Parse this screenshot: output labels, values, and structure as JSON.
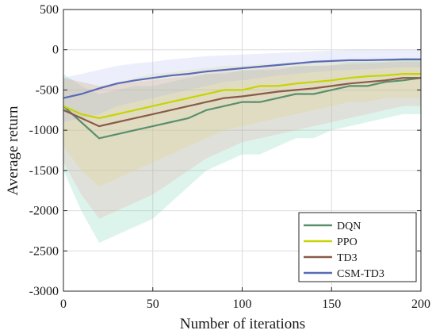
{
  "chart_data": {
    "type": "line",
    "title": "",
    "xlabel": "Number of iterations",
    "ylabel": "Average return",
    "xlim": [
      0,
      200
    ],
    "ylim": [
      -3000,
      500
    ],
    "x_ticks": [
      0,
      50,
      100,
      150,
      200
    ],
    "y_ticks": [
      -3000,
      -2500,
      -2000,
      -1500,
      -1000,
      -500,
      0,
      500
    ],
    "grid": true,
    "legend_position": "bottom-right",
    "x": [
      0,
      10,
      20,
      30,
      40,
      50,
      60,
      70,
      80,
      90,
      100,
      110,
      120,
      130,
      140,
      150,
      160,
      170,
      180,
      190,
      200
    ],
    "series": [
      {
        "name": "DQN",
        "color": "#5a8f6e",
        "band_color": "#66ccaa",
        "values": [
          -700,
          -900,
          -1100,
          -1050,
          -1000,
          -950,
          -900,
          -850,
          -750,
          -700,
          -650,
          -650,
          -600,
          -550,
          -550,
          -500,
          -450,
          -450,
          -400,
          -380,
          -350
        ],
        "band_low": [
          -1500,
          -2000,
          -2400,
          -2300,
          -2200,
          -2100,
          -1900,
          -1700,
          -1500,
          -1400,
          -1300,
          -1300,
          -1200,
          -1100,
          -1100,
          -1000,
          -950,
          -900,
          -850,
          -800,
          -800
        ],
        "band_high": [
          -300,
          -450,
          -550,
          -500,
          -450,
          -450,
          -400,
          -350,
          -300,
          -300,
          -250,
          -250,
          -250,
          -200,
          -200,
          -200,
          -150,
          -150,
          -150,
          -100,
          -100
        ]
      },
      {
        "name": "PPO",
        "color": "#c8d400",
        "band_color": "#e0e066",
        "values": [
          -700,
          -800,
          -850,
          -800,
          -750,
          -700,
          -650,
          -600,
          -550,
          -500,
          -500,
          -450,
          -450,
          -420,
          -400,
          -380,
          -350,
          -330,
          -320,
          -300,
          -300
        ],
        "band_low": [
          -1200,
          -1500,
          -1700,
          -1600,
          -1500,
          -1400,
          -1300,
          -1200,
          -1100,
          -1000,
          -950,
          -900,
          -850,
          -800,
          -750,
          -700,
          -650,
          -650,
          -600,
          -600,
          -600
        ],
        "band_high": [
          -350,
          -400,
          -450,
          -400,
          -350,
          -300,
          -280,
          -250,
          -230,
          -200,
          -200,
          -180,
          -170,
          -150,
          -150,
          -140,
          -130,
          -120,
          -110,
          -100,
          -100
        ]
      },
      {
        "name": "TD3",
        "color": "#8b5a4a",
        "band_color": "#ee9999",
        "values": [
          -750,
          -850,
          -950,
          -900,
          -850,
          -800,
          -750,
          -700,
          -650,
          -600,
          -580,
          -550,
          -520,
          -500,
          -480,
          -450,
          -420,
          -400,
          -380,
          -350,
          -350
        ],
        "band_low": [
          -1400,
          -1800,
          -2100,
          -2000,
          -1900,
          -1800,
          -1650,
          -1500,
          -1350,
          -1250,
          -1150,
          -1100,
          -1050,
          -1000,
          -950,
          -900,
          -850,
          -800,
          -750,
          -700,
          -700
        ],
        "band_high": [
          -350,
          -400,
          -450,
          -430,
          -400,
          -380,
          -350,
          -330,
          -300,
          -280,
          -260,
          -240,
          -220,
          -210,
          -200,
          -190,
          -180,
          -170,
          -160,
          -150,
          -150
        ]
      },
      {
        "name": "CSM-TD3",
        "color": "#5a6ab8",
        "band_color": "#aab4ee",
        "values": [
          -600,
          -550,
          -480,
          -420,
          -380,
          -350,
          -320,
          -300,
          -270,
          -250,
          -230,
          -210,
          -190,
          -170,
          -150,
          -140,
          -130,
          -130,
          -125,
          -120,
          -120
        ],
        "band_low": [
          -900,
          -850,
          -800,
          -700,
          -650,
          -600,
          -550,
          -500,
          -450,
          -400,
          -380,
          -350,
          -320,
          -300,
          -280,
          -260,
          -250,
          -240,
          -230,
          -220,
          -220
        ],
        "band_high": [
          -350,
          -300,
          -250,
          -200,
          -170,
          -150,
          -120,
          -100,
          -80,
          -70,
          -60,
          -50,
          -40,
          -30,
          -20,
          -10,
          0,
          0,
          0,
          0,
          0
        ]
      }
    ]
  }
}
